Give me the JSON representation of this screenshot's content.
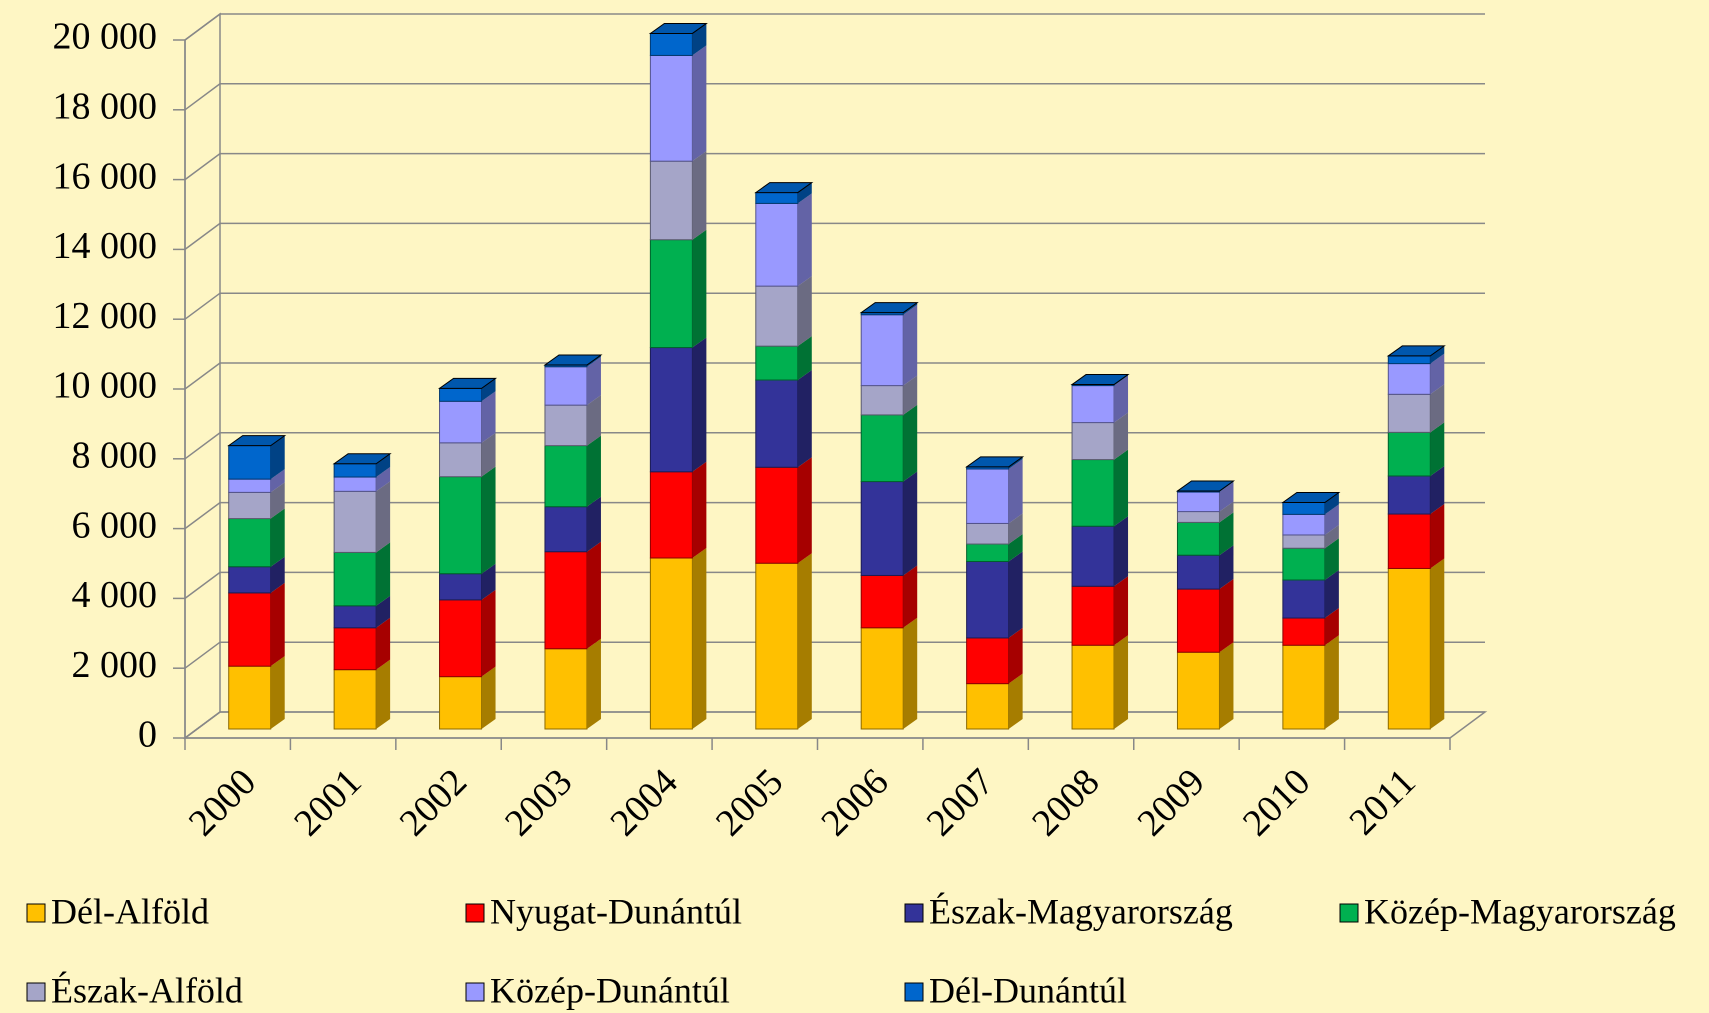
{
  "chart_data": {
    "type": "bar3d-stacked",
    "categories": [
      "2000",
      "2001",
      "2002",
      "2003",
      "2004",
      "2005",
      "2006",
      "2007",
      "2008",
      "2009",
      "2010",
      "2011"
    ],
    "series": [
      {
        "name": "Dél-Alföld",
        "color": "#ffc000",
        "values": [
          1800,
          1700,
          1500,
          2300,
          4900,
          4750,
          2900,
          1300,
          2400,
          2200,
          2400,
          4600
        ]
      },
      {
        "name": "Nyugat-Dunántúl",
        "color": "#ff0000",
        "values": [
          2100,
          1200,
          2200,
          2780,
          2470,
          2750,
          1500,
          1310,
          1690,
          1810,
          780,
          1560
        ]
      },
      {
        "name": "Észak-Magyarország",
        "color": "#333399",
        "values": [
          750,
          630,
          750,
          1290,
          3560,
          2500,
          2690,
          2190,
          1720,
          970,
          1090,
          1090
        ]
      },
      {
        "name": "Közép-Magyarország",
        "color": "#00b050",
        "values": [
          1380,
          1530,
          2780,
          1750,
          3090,
          970,
          1910,
          500,
          1910,
          940,
          910,
          1250
        ]
      },
      {
        "name": "Észak-Alföld",
        "color": "#a5a5c8",
        "values": [
          750,
          1750,
          970,
          1160,
          2250,
          1720,
          840,
          590,
          1060,
          310,
          380,
          1090
        ]
      },
      {
        "name": "Közép-Dunántúl",
        "color": "#9999ff",
        "values": [
          380,
          410,
          1190,
          1100,
          3030,
          2370,
          2030,
          1560,
          1060,
          560,
          590,
          880
        ]
      },
      {
        "name": "Dél-Dunántúl",
        "color": "#0066cc",
        "values": [
          960,
          380,
          370,
          50,
          630,
          310,
          60,
          60,
          30,
          30,
          340,
          220
        ]
      }
    ],
    "ylim": [
      0,
      20000
    ],
    "yticks": [
      0,
      {
        "value": 2000,
        "label": "2 000"
      },
      {
        "value": 4000,
        "label": "4 000"
      },
      {
        "value": 6000,
        "label": "6 000"
      },
      {
        "value": 8000,
        "label": "8 000"
      },
      {
        "value": 10000,
        "label": "10 000"
      },
      {
        "value": 12000,
        "label": "12 000"
      },
      {
        "value": 14000,
        "label": "14 000"
      },
      {
        "value": 16000,
        "label": "16 000"
      },
      {
        "value": 18000,
        "label": "18 000"
      },
      {
        "value": 20000,
        "label": "20 000"
      }
    ],
    "grid": true
  }
}
